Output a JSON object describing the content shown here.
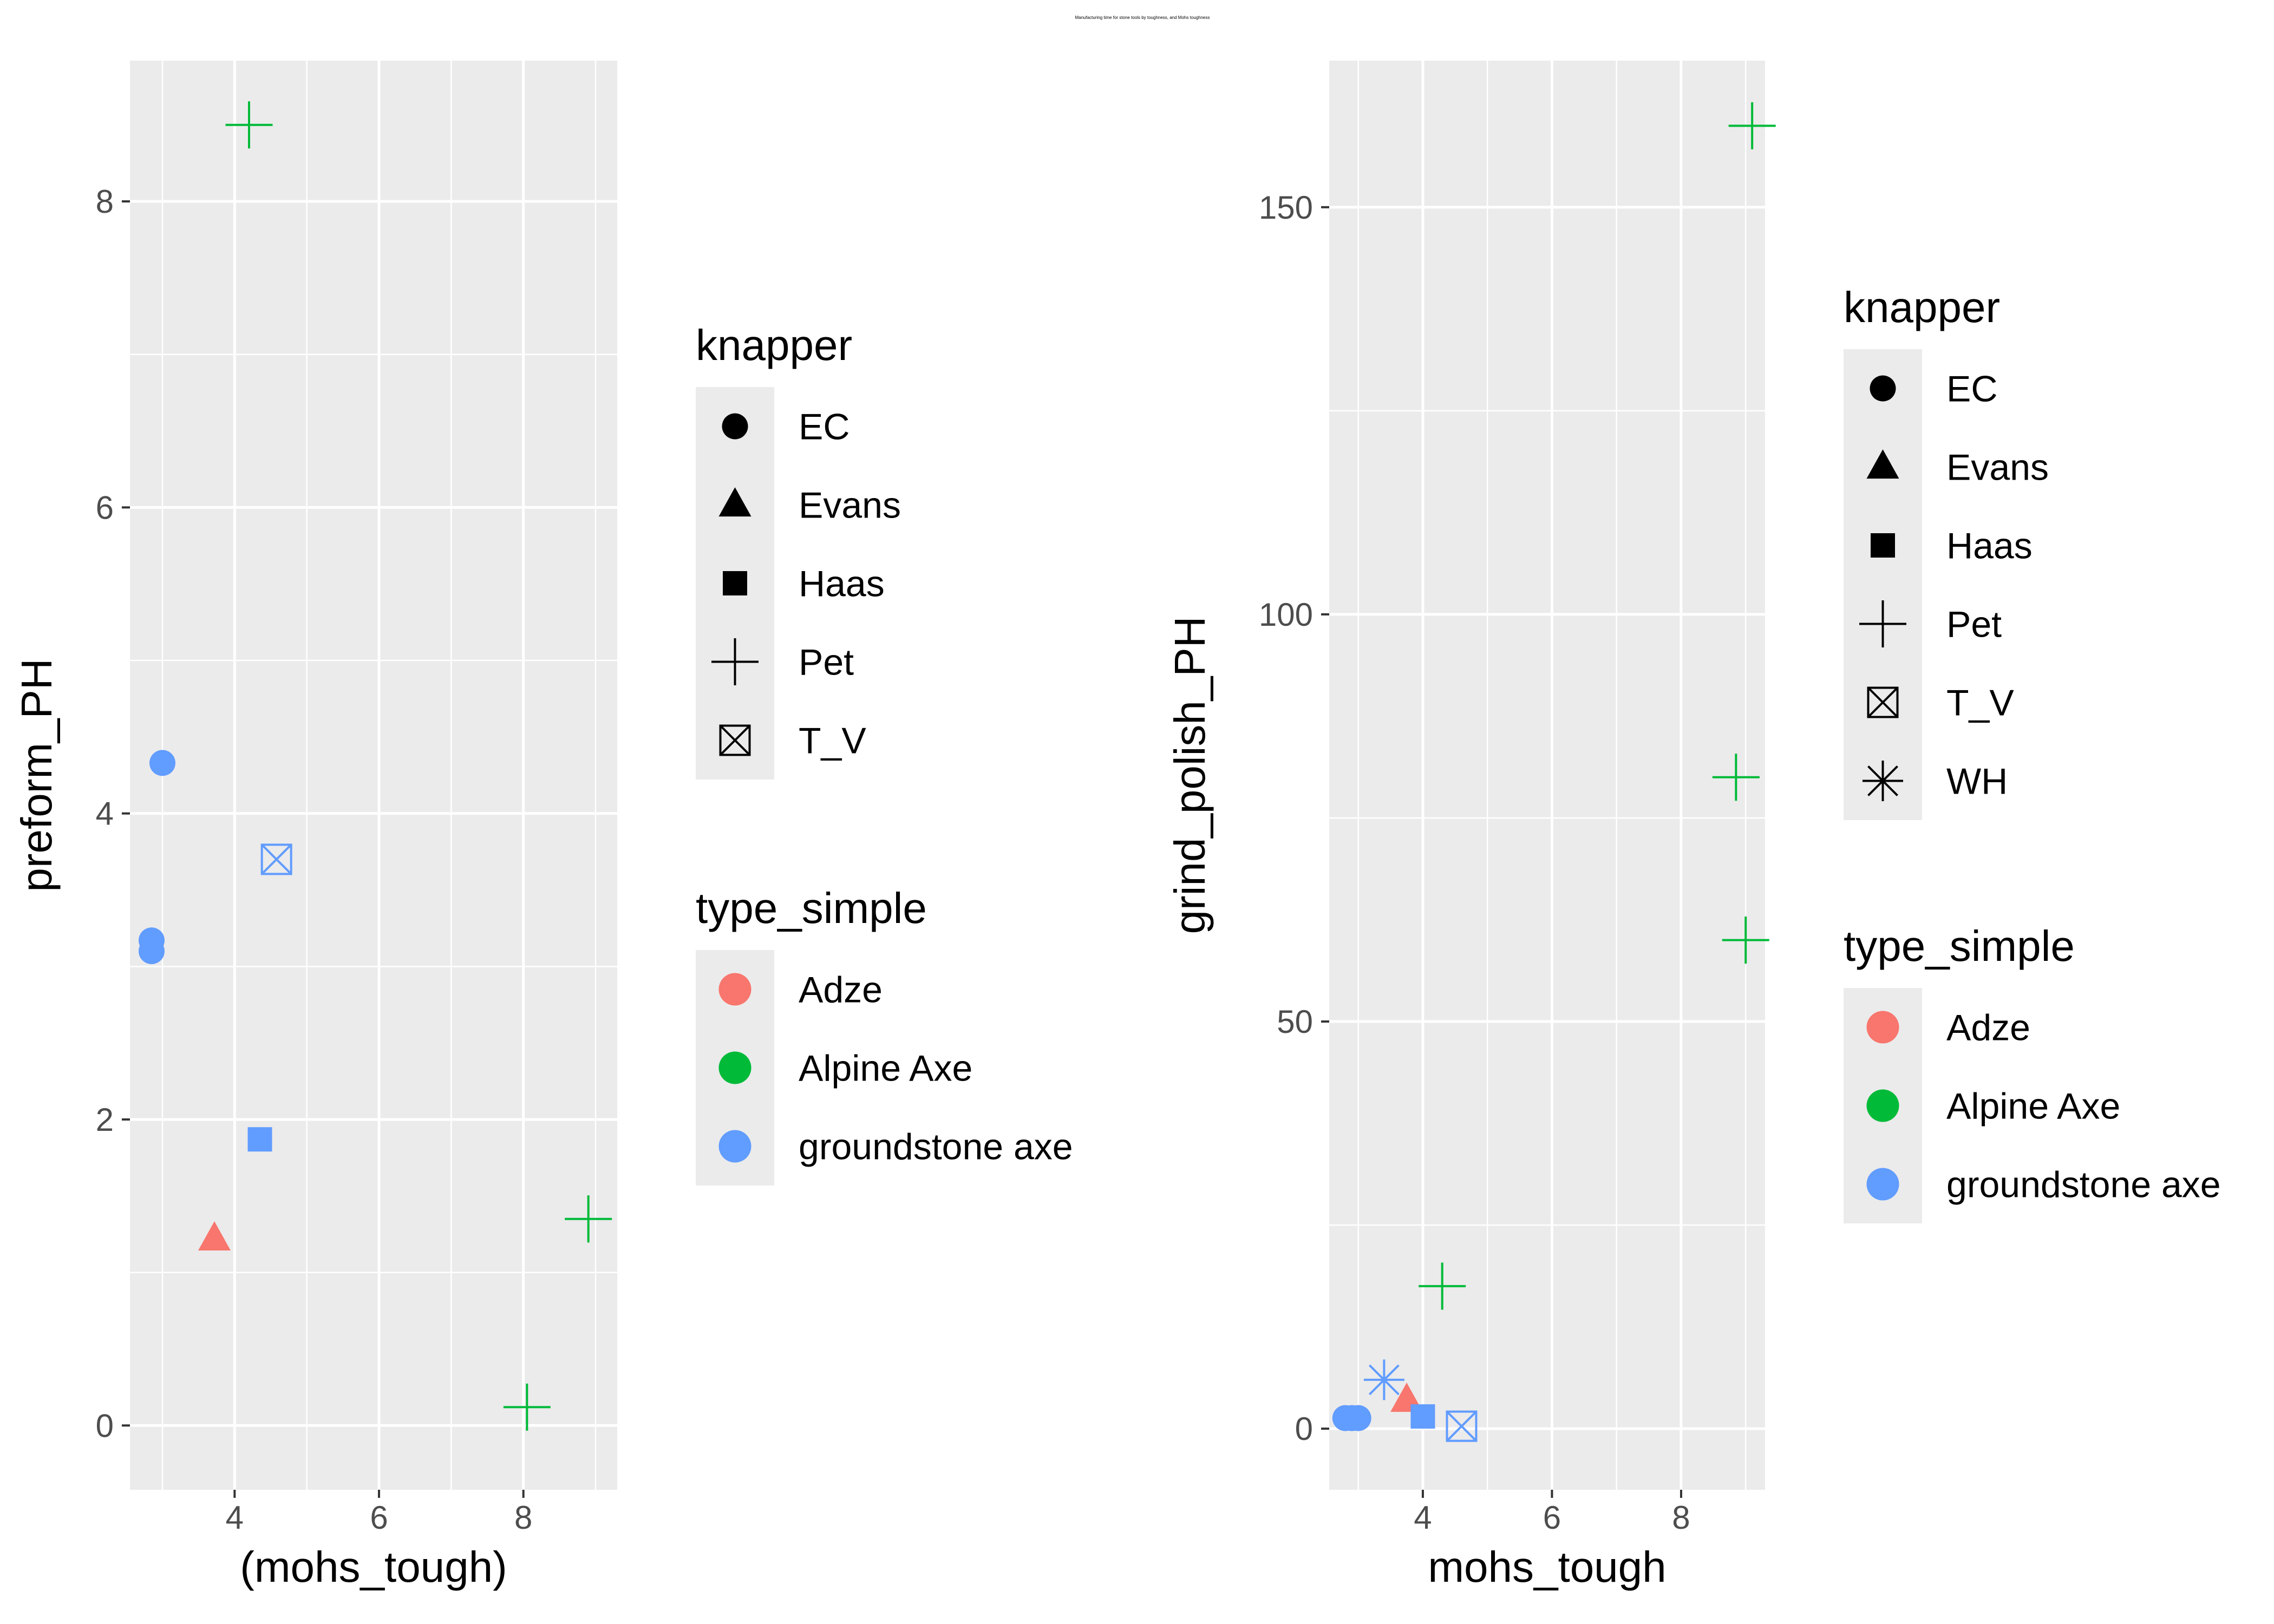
{
  "super_title": "Manufacturing time for stone tools by toughness, and Mohs toughness",
  "colors": {
    "panel_bg": "#EBEBEB",
    "grid_major": "#FFFFFF",
    "tick": "#333333",
    "tick_label": "#4D4D4D",
    "axis_title": "#000000",
    "legend_key_bg": "#EBEBEB",
    "series": {
      "Adze": "#F8766D",
      "Alpine Axe": "#00BA38",
      "groundstone axe": "#619CFF"
    }
  },
  "shapes": {
    "EC": "circle",
    "Evans": "triangle",
    "Haas": "square",
    "Pet": "plus",
    "T_V": "boxed-x",
    "WH": "asterisk"
  },
  "chart_data": [
    {
      "type": "scatter",
      "xlabel": "(mohs_tough)",
      "ylabel": "preform_PH",
      "xlim": [
        2.55,
        9.3
      ],
      "ylim": [
        -0.42,
        8.92
      ],
      "x_ticks": [
        4,
        6,
        8
      ],
      "y_ticks": [
        0,
        2,
        4,
        6,
        8
      ],
      "x_tick_labels": [
        "4",
        "6",
        "8"
      ],
      "y_tick_labels": [
        "0",
        "2",
        "4",
        "6",
        "8"
      ],
      "grid": true,
      "legend_placement": "right",
      "points": [
        {
          "x": 4.2,
          "y": 8.5,
          "knapper": "Pet",
          "type_simple": "Alpine Axe"
        },
        {
          "x": 8.9,
          "y": 1.35,
          "knapper": "Pet",
          "type_simple": "Alpine Axe"
        },
        {
          "x": 8.05,
          "y": 0.12,
          "knapper": "Pet",
          "type_simple": "Alpine Axe"
        },
        {
          "x": 3.0,
          "y": 4.33,
          "knapper": "EC",
          "type_simple": "groundstone axe"
        },
        {
          "x": 2.85,
          "y": 3.17,
          "knapper": "EC",
          "type_simple": "groundstone axe"
        },
        {
          "x": 2.85,
          "y": 3.1,
          "knapper": "EC",
          "type_simple": "groundstone axe"
        },
        {
          "x": 4.58,
          "y": 3.7,
          "knapper": "T_V",
          "type_simple": "groundstone axe"
        },
        {
          "x": 4.35,
          "y": 1.87,
          "knapper": "Haas",
          "type_simple": "groundstone axe"
        },
        {
          "x": 3.72,
          "y": 1.22,
          "knapper": "Evans",
          "type_simple": "Adze"
        }
      ],
      "legend": {
        "knapper": {
          "title": "knapper",
          "entries": [
            "EC",
            "Evans",
            "Haas",
            "Pet",
            "T_V"
          ]
        },
        "type_simple": {
          "title": "type_simple",
          "entries": [
            "Adze",
            "Alpine Axe",
            "groundstone axe"
          ]
        }
      }
    },
    {
      "type": "scatter",
      "xlabel": "mohs_tough",
      "ylabel": "grind_polish_PH",
      "xlim": [
        2.55,
        9.3
      ],
      "ylim": [
        -7.5,
        168
      ],
      "x_ticks": [
        4,
        6,
        8
      ],
      "y_ticks": [
        0,
        50,
        100,
        150
      ],
      "x_tick_labels": [
        "4",
        "6",
        "8"
      ],
      "y_tick_labels": [
        "0",
        "50",
        "100",
        "150"
      ],
      "grid": true,
      "legend_placement": "right",
      "points": [
        {
          "x": 9.1,
          "y": 160,
          "knapper": "Pet",
          "type_simple": "Alpine Axe"
        },
        {
          "x": 8.85,
          "y": 80,
          "knapper": "Pet",
          "type_simple": "Alpine Axe"
        },
        {
          "x": 9.0,
          "y": 60,
          "knapper": "Pet",
          "type_simple": "Alpine Axe"
        },
        {
          "x": 4.3,
          "y": 17.5,
          "knapper": "Pet",
          "type_simple": "Alpine Axe"
        },
        {
          "x": 3.4,
          "y": 6,
          "knapper": "WH",
          "type_simple": "groundstone axe"
        },
        {
          "x": 3.75,
          "y": 3.5,
          "knapper": "Evans",
          "type_simple": "Adze"
        },
        {
          "x": 4.0,
          "y": 1.5,
          "knapper": "Haas",
          "type_simple": "groundstone axe"
        },
        {
          "x": 4.6,
          "y": 0.3,
          "knapper": "T_V",
          "type_simple": "groundstone axe"
        },
        {
          "x": 2.8,
          "y": 1.3,
          "knapper": "EC",
          "type_simple": "groundstone axe"
        },
        {
          "x": 2.9,
          "y": 1.3,
          "knapper": "EC",
          "type_simple": "groundstone axe"
        },
        {
          "x": 3.0,
          "y": 1.3,
          "knapper": "EC",
          "type_simple": "groundstone axe"
        }
      ],
      "legend": {
        "knapper": {
          "title": "knapper",
          "entries": [
            "EC",
            "Evans",
            "Haas",
            "Pet",
            "T_V",
            "WH"
          ]
        },
        "type_simple": {
          "title": "type_simple",
          "entries": [
            "Adze",
            "Alpine Axe",
            "groundstone axe"
          ]
        }
      }
    }
  ]
}
